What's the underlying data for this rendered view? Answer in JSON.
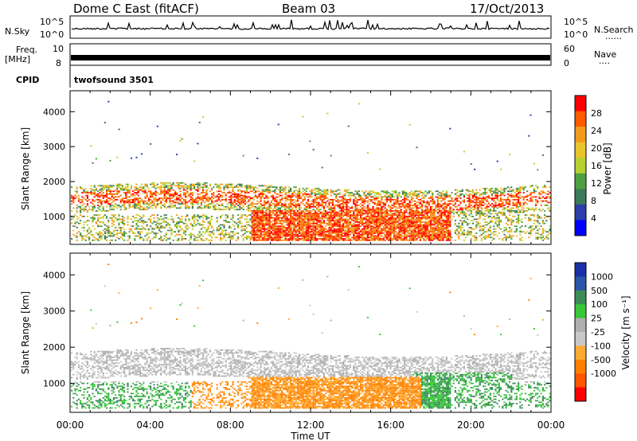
{
  "header": {
    "station": "Dome C East (fitACF)",
    "beam": "Beam 03",
    "date": "17/Oct/2013"
  },
  "status_panels": {
    "nsky_label": "N.Sky",
    "nsky_ticks": [
      "10^5",
      "10^0"
    ],
    "nsearch_label": "N.Search",
    "nsearch_ticks": [
      "10^5",
      "10^0"
    ],
    "freq_label_1": "Freq.",
    "freq_label_2": "[MHz]",
    "freq_ticks": [
      "10",
      "8"
    ],
    "nave_label": "Nave",
    "nave_ticks": [
      "60",
      "0"
    ],
    "cpid_label": "CPID",
    "cpid_value": "twofsound 3501",
    "dots": "......",
    "dots_short": "...."
  },
  "icon_names": {
    "nsearch_legend": "dotted-line-icon",
    "nave_legend": "dotted-line-icon"
  },
  "colors": {
    "power": [
      "#0000ff",
      "#2c3fa8",
      "#3c7a5a",
      "#4fa040",
      "#b6d231",
      "#e9c42b",
      "#f29a1c",
      "#ff5a00",
      "#ff0000"
    ],
    "velocity": [
      "#ff0000",
      "#ff5500",
      "#ff8000",
      "#ffaa33",
      "#c8c8c8",
      "#b0b0b0",
      "#39c839",
      "#3c8c5a",
      "#2c55a8",
      "#1a2fa8"
    ]
  },
  "chart_data": [
    {
      "type": "heatmap",
      "name": "power",
      "xlabel": "",
      "ylabel": "Slant Range [km]",
      "x_ticks": [
        "00:00",
        "04:00",
        "08:00",
        "12:00",
        "16:00",
        "20:00",
        "00:00"
      ],
      "xlim_hours": [
        0,
        24
      ],
      "y_ticks": [
        1000,
        2000,
        3000,
        4000
      ],
      "ylim": [
        200,
        4600
      ],
      "colorbar": {
        "label": "Power [dB]",
        "ticks": [
          4,
          8,
          12,
          16,
          20,
          24,
          28
        ],
        "range": [
          0,
          32
        ]
      }
    },
    {
      "type": "heatmap",
      "name": "velocity",
      "xlabel": "Time UT",
      "ylabel": "Slant Range [km]",
      "x_ticks": [
        "00:00",
        "04:00",
        "08:00",
        "12:00",
        "16:00",
        "20:00",
        "00:00"
      ],
      "xlim_hours": [
        0,
        24
      ],
      "y_ticks": [
        1000,
        2000,
        3000,
        4000
      ],
      "ylim": [
        200,
        4600
      ],
      "colorbar": {
        "label": "Velocity [m s⁻¹]",
        "ticks": [
          1000,
          500,
          100,
          25,
          -25,
          -100,
          -500,
          -1000
        ]
      }
    }
  ]
}
